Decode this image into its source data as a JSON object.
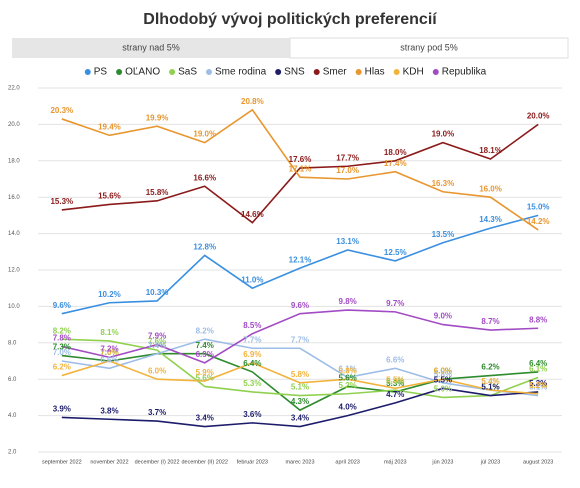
{
  "chart_data": {
    "type": "line",
    "title": "Dlhodobý vývoj politických preferencií",
    "tabs": [
      "strany nad 5%",
      "strany pod 5%"
    ],
    "categories": [
      "september 2022",
      "november 2022",
      "december (I) 2022",
      "december (II) 2022",
      "február 2023",
      "marec 2023",
      "apríl 2023",
      "máj 2023",
      "jún 2023",
      "júl 2023",
      "august 2023"
    ],
    "ylim": [
      2,
      22
    ],
    "yticks": [
      {
        "value": 2,
        "label": "2.0"
      },
      {
        "value": 4,
        "label": "4.0"
      },
      {
        "value": 6,
        "label": "6.0"
      },
      {
        "value": 8,
        "label": "8.0"
      },
      {
        "value": 10,
        "label": "10.0"
      },
      {
        "value": 12,
        "label": "12.0"
      },
      {
        "value": 14,
        "label": "14.0"
      },
      {
        "value": 16,
        "label": "16.0"
      },
      {
        "value": 18,
        "label": "18.0"
      },
      {
        "value": 20,
        "label": "20.0"
      },
      {
        "value": 22,
        "label": "22.0"
      }
    ],
    "grid": true,
    "series": [
      {
        "name": "PS",
        "color": "#3a8fe0",
        "values": [
          9.6,
          10.2,
          10.3,
          12.8,
          11.0,
          12.1,
          13.1,
          12.5,
          13.5,
          14.3,
          15.0
        ],
        "value_labels": [
          "9.6%",
          "10.2%",
          "10.3%",
          "12.8%",
          "11.0%",
          "12.1%",
          "13.1%",
          "12.5%",
          "13.5%",
          "14.3%",
          "15.0%"
        ]
      },
      {
        "name": "OĽANO",
        "color": "#2e8b2e",
        "values": [
          7.3,
          7.0,
          7.4,
          7.4,
          6.4,
          4.3,
          5.6,
          5.3,
          6.0,
          6.2,
          6.4
        ],
        "value_labels": [
          "7.3%",
          "7.0%",
          "7.4%",
          "7.4%",
          "6.4%",
          "4.3%",
          "5.6%",
          "5.3%",
          "6.0%",
          "6.2%",
          "6.4%"
        ]
      },
      {
        "name": "SaS",
        "color": "#8fd14f",
        "values": [
          8.2,
          8.1,
          7.6,
          5.6,
          5.3,
          5.1,
          5.2,
          5.4,
          5.0,
          5.1,
          6.1
        ],
        "value_labels": [
          "8.2%",
          "8.1%",
          "7.6%",
          "5.6%",
          "5.3%",
          "5.1%",
          "5.2%",
          "5.4%",
          "5.0%",
          "5.1%",
          "6.1%"
        ]
      },
      {
        "name": "Sme rodina",
        "color": "#9dbde6",
        "values": [
          7.0,
          6.6,
          7.4,
          8.2,
          7.7,
          7.7,
          6.1,
          6.6,
          5.8,
          5.4,
          5.1
        ],
        "value_labels": [
          "7.0%",
          "6.6%",
          "7.4%",
          "8.2%",
          "7.7%",
          "7.7%",
          "6.1%",
          "6.6%",
          "5.8%",
          "5.4%",
          "5.1%"
        ]
      },
      {
        "name": "SNS",
        "color": "#1c1c6b",
        "values": [
          3.9,
          3.8,
          3.7,
          3.4,
          3.6,
          3.4,
          4.0,
          4.7,
          5.5,
          5.1,
          5.3
        ],
        "value_labels": [
          "3.9%",
          "3.8%",
          "3.7%",
          "3.4%",
          "3.6%",
          "3.4%",
          "4.0%",
          "4.7%",
          "5.5%",
          "5.1%",
          "5.3%"
        ]
      },
      {
        "name": "Smer",
        "color": "#8b1a1a",
        "values": [
          15.3,
          15.6,
          15.8,
          16.6,
          14.6,
          17.6,
          17.7,
          18.0,
          19.0,
          18.1,
          20.0
        ],
        "value_labels": [
          "15.3%",
          "15.6%",
          "15.8%",
          "16.6%",
          "14.6%",
          "17.6%",
          "17.7%",
          "18.0%",
          "19.0%",
          "18.1%",
          "20.0%"
        ]
      },
      {
        "name": "Hlas",
        "color": "#e8962e",
        "values": [
          20.3,
          19.4,
          19.9,
          19.0,
          20.8,
          17.1,
          17.0,
          17.4,
          16.3,
          16.0,
          14.2
        ],
        "value_labels": [
          "20.3%",
          "19.4%",
          "19.9%",
          "19.0%",
          "20.8%",
          "17.1%",
          "17.0%",
          "17.4%",
          "16.3%",
          "16.0%",
          "14.2%"
        ]
      },
      {
        "name": "KDH",
        "color": "#f2b33d",
        "values": [
          6.2,
          7.0,
          6.0,
          5.9,
          6.9,
          5.8,
          6.0,
          5.5,
          6.0,
          5.4,
          5.2
        ],
        "value_labels": [
          "6.2%",
          "7.0%",
          "6.0%",
          "5.9%",
          "6.9%",
          "5.8%",
          "6.0%",
          "5.5%",
          "6.0%",
          "5.4%",
          "5.2%"
        ]
      },
      {
        "name": "Republika",
        "color": "#a24cc4",
        "values": [
          7.8,
          7.2,
          7.9,
          6.9,
          8.5,
          9.6,
          9.8,
          9.7,
          9.0,
          8.7,
          8.8
        ],
        "value_labels": [
          "7.8%",
          "7.2%",
          "7.9%",
          "6.9%",
          "8.5%",
          "9.6%",
          "9.8%",
          "9.7%",
          "9.0%",
          "8.7%",
          "8.8%"
        ]
      }
    ]
  }
}
